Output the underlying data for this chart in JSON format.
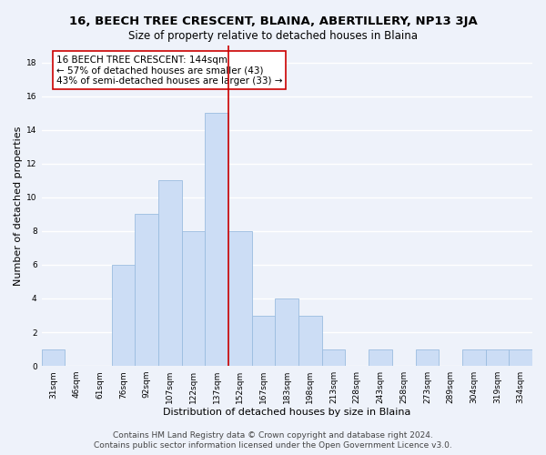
{
  "title": "16, BEECH TREE CRESCENT, BLAINA, ABERTILLERY, NP13 3JA",
  "subtitle": "Size of property relative to detached houses in Blaina",
  "xlabel": "Distribution of detached houses by size in Blaina",
  "ylabel": "Number of detached properties",
  "bar_labels": [
    "31sqm",
    "46sqm",
    "61sqm",
    "76sqm",
    "92sqm",
    "107sqm",
    "122sqm",
    "137sqm",
    "152sqm",
    "167sqm",
    "183sqm",
    "198sqm",
    "213sqm",
    "228sqm",
    "243sqm",
    "258sqm",
    "273sqm",
    "289sqm",
    "304sqm",
    "319sqm",
    "334sqm"
  ],
  "bar_values": [
    1,
    0,
    0,
    6,
    9,
    11,
    8,
    15,
    8,
    3,
    4,
    3,
    1,
    0,
    1,
    0,
    1,
    0,
    1,
    1,
    1
  ],
  "bar_color": "#ccddf5",
  "bar_edge_color": "#9bbce0",
  "vline_x_index": 7.5,
  "vline_color": "#cc0000",
  "annotation_title": "16 BEECH TREE CRESCENT: 144sqm",
  "annotation_line1": "← 57% of detached houses are smaller (43)",
  "annotation_line2": "43% of semi-detached houses are larger (33) →",
  "annotation_box_color": "#ffffff",
  "annotation_box_edge": "#cc0000",
  "ylim": [
    0,
    19
  ],
  "yticks": [
    0,
    2,
    4,
    6,
    8,
    10,
    12,
    14,
    16,
    18
  ],
  "footer1": "Contains HM Land Registry data © Crown copyright and database right 2024.",
  "footer2": "Contains public sector information licensed under the Open Government Licence v3.0.",
  "background_color": "#eef2fa",
  "grid_color": "#ffffff",
  "title_fontsize": 9.5,
  "subtitle_fontsize": 8.5,
  "axis_label_fontsize": 8,
  "tick_fontsize": 6.5,
  "annotation_fontsize": 7.5,
  "footer_fontsize": 6.5
}
